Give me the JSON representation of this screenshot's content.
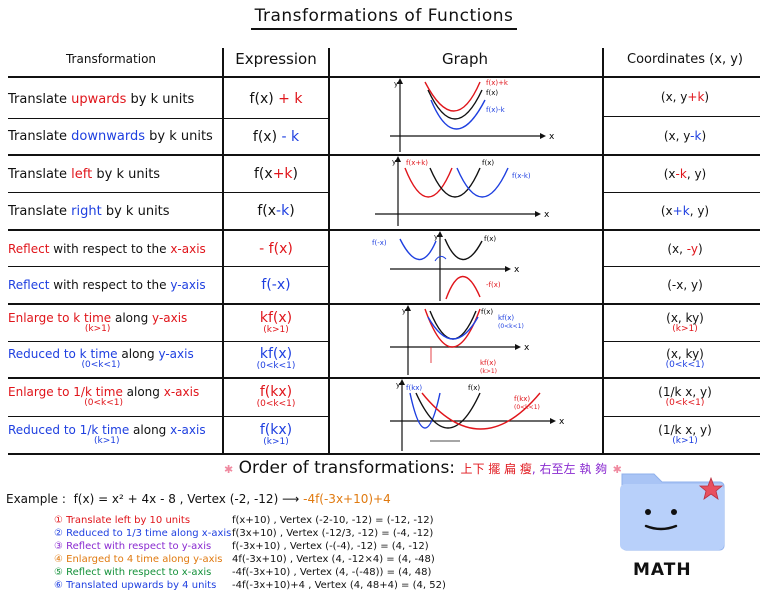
{
  "title": "Transformations of Functions",
  "headers": {
    "transformation": "Transformation",
    "expression": "Expression",
    "graph": "Graph",
    "coordinates": "Coordinates (x, y)"
  },
  "rows": [
    {
      "name": "Translate upwards by k units",
      "expr": "f(x) + k",
      "coord": "(x, y+k)"
    },
    {
      "name": "Translate downwards by k units",
      "expr": "f(x) - k",
      "coord": "(x, y-k)"
    },
    {
      "name": "Translate left by k units",
      "expr": "f(x+k)",
      "coord": "(x-k, y)"
    },
    {
      "name": "Translate right by k units",
      "expr": "f(x-k)",
      "coord": "(x+k, y)"
    },
    {
      "name": "Reflect with respect to the x-axis",
      "expr": "-f(x)",
      "coord": "(x, -y)"
    },
    {
      "name": "Reflect with respect to the y-axis",
      "expr": "f(-x)",
      "coord": "(-x, y)"
    },
    {
      "name": "Enlarge to k time along y-axis",
      "cond": "(k>1)",
      "expr": "kf(x)",
      "expr_cond": "(k>1)",
      "coord": "(x, ky)",
      "coord_cond": "(k>1)"
    },
    {
      "name": "Reduced to k time along y-axis",
      "cond": "(0<k<1)",
      "expr": "kf(x)",
      "expr_cond": "(0<k<1)",
      "coord": "(x, ky)",
      "coord_cond": "(0<k<1)"
    },
    {
      "name": "Enlarge to 1/k time along x-axis",
      "cond": "(0<k<1)",
      "expr": "f(kx)",
      "expr_cond": "(0<k<1)",
      "coord": "(1/k x, y)",
      "coord_cond": "(0<k<1)"
    },
    {
      "name": "Reduced to 1/k time along x-axis",
      "cond": "(k>1)",
      "expr": "f(kx)",
      "expr_cond": "(k>1)",
      "coord": "(1/k x, y)",
      "coord_cond": "(k>1)"
    }
  ],
  "graph_labels": {
    "g1": [
      "f(x)+k",
      "f(x)",
      "f(x)-k",
      "y",
      "x"
    ],
    "g2": [
      "f(x+k)",
      "f(x)",
      "f(x-k)",
      "y",
      "x"
    ],
    "g3": [
      "f(-x)",
      "f(x)",
      "-f(x)",
      "y",
      "x"
    ],
    "g4": [
      "f(x)",
      "kf(x)",
      "(0<k<1)",
      "kf(x)",
      "(k>1)",
      "y",
      "x"
    ],
    "g5": [
      "f(kx)",
      "f(x)",
      "f(kx)",
      "(0<k<1)",
      "y",
      "x"
    ]
  },
  "order": {
    "label": "Order of transformations:",
    "chinese1": "上下 擺 扁 瘦",
    "chinese2": ", 右至左 執 夠"
  },
  "example": {
    "label": "Example :",
    "function": "f(x) = x² + 4x - 8 , Vertex (-2, -12)",
    "result": "-4f(-3x+10)+4",
    "steps": [
      "① Translate left by 10 units",
      "② Reduced to 1/3 time along x-axis",
      "③ Reflect with respect to y-axis",
      "④ Enlarged to 4 time along y-axis",
      "⑤ Reflect with respect to x-axis",
      "⑥ Translated upwards by 4 units"
    ],
    "calcs": [
      "f(x+10) , Vertex (-2-10, -12) = (-12, -12)",
      "f(3x+10) , Vertex (-12/3, -12) = (-4, -12)",
      "f(-3x+10) , Vertex (-(-4), -12) = (4, -12)",
      "4f(-3x+10) , Vertex (4, -12×4) = (4, -48)",
      "-4f(-3x+10) , Vertex (4, -(-48)) = (4, 48)",
      "-4f(-3x+10)+4 , Vertex (4, 48+4) = (4, 52)"
    ]
  },
  "logo": {
    "text": "MATH",
    "icon": "folder-face-icon"
  },
  "colors": {
    "red": "#e0151b",
    "blue": "#1e3fe0",
    "black": "#111111",
    "purple": "#8a2bd0",
    "folder": "#a9c4f5"
  }
}
